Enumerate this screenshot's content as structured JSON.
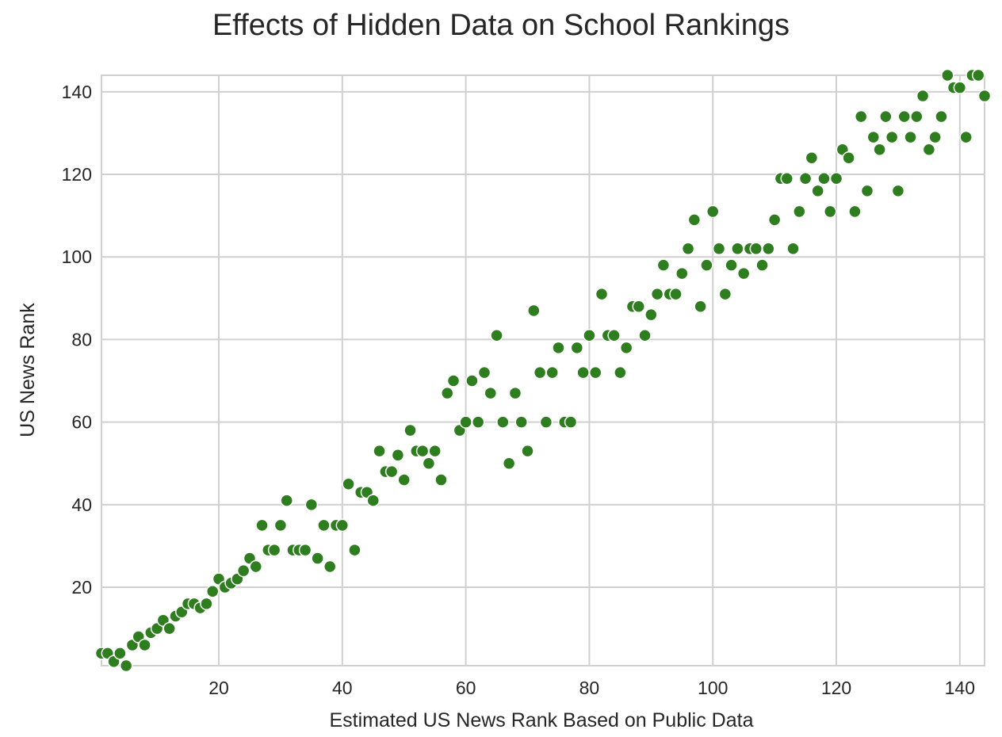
{
  "chart_data": {
    "type": "scatter",
    "title": "Effects of Hidden Data on School Rankings",
    "xlabel": "Estimated US News Rank Based on Public Data",
    "ylabel": "US News Rank",
    "xlim": [
      1,
      144
    ],
    "ylim": [
      1,
      144
    ],
    "xticks": [
      20,
      40,
      60,
      80,
      100,
      120,
      140
    ],
    "yticks": [
      20,
      40,
      60,
      80,
      100,
      120,
      140
    ],
    "grid": true,
    "legend": "none",
    "point_color": "#2e7d1e",
    "points": [
      [
        1,
        4
      ],
      [
        2,
        4
      ],
      [
        3,
        2
      ],
      [
        4,
        4
      ],
      [
        5,
        1
      ],
      [
        6,
        6
      ],
      [
        7,
        8
      ],
      [
        8,
        6
      ],
      [
        9,
        9
      ],
      [
        10,
        10
      ],
      [
        11,
        12
      ],
      [
        12,
        10
      ],
      [
        13,
        13
      ],
      [
        14,
        14
      ],
      [
        15,
        16
      ],
      [
        16,
        16
      ],
      [
        17,
        15
      ],
      [
        18,
        16
      ],
      [
        19,
        19
      ],
      [
        20,
        22
      ],
      [
        21,
        20
      ],
      [
        22,
        21
      ],
      [
        23,
        22
      ],
      [
        24,
        24
      ],
      [
        25,
        27
      ],
      [
        26,
        25
      ],
      [
        27,
        35
      ],
      [
        28,
        29
      ],
      [
        29,
        29
      ],
      [
        30,
        35
      ],
      [
        31,
        41
      ],
      [
        32,
        29
      ],
      [
        33,
        29
      ],
      [
        34,
        29
      ],
      [
        35,
        40
      ],
      [
        36,
        27
      ],
      [
        37,
        35
      ],
      [
        38,
        25
      ],
      [
        39,
        35
      ],
      [
        40,
        35
      ],
      [
        41,
        45
      ],
      [
        42,
        29
      ],
      [
        43,
        43
      ],
      [
        44,
        43
      ],
      [
        45,
        41
      ],
      [
        46,
        53
      ],
      [
        47,
        48
      ],
      [
        48,
        48
      ],
      [
        49,
        52
      ],
      [
        50,
        46
      ],
      [
        51,
        58
      ],
      [
        52,
        53
      ],
      [
        53,
        53
      ],
      [
        54,
        50
      ],
      [
        55,
        53
      ],
      [
        56,
        46
      ],
      [
        57,
        67
      ],
      [
        58,
        70
      ],
      [
        59,
        58
      ],
      [
        60,
        60
      ],
      [
        61,
        70
      ],
      [
        62,
        60
      ],
      [
        63,
        72
      ],
      [
        64,
        67
      ],
      [
        65,
        81
      ],
      [
        66,
        60
      ],
      [
        67,
        50
      ],
      [
        68,
        67
      ],
      [
        69,
        60
      ],
      [
        70,
        53
      ],
      [
        71,
        87
      ],
      [
        72,
        72
      ],
      [
        73,
        60
      ],
      [
        74,
        72
      ],
      [
        75,
        78
      ],
      [
        76,
        60
      ],
      [
        77,
        60
      ],
      [
        78,
        78
      ],
      [
        79,
        72
      ],
      [
        80,
        81
      ],
      [
        81,
        72
      ],
      [
        82,
        91
      ],
      [
        83,
        81
      ],
      [
        84,
        81
      ],
      [
        85,
        72
      ],
      [
        86,
        78
      ],
      [
        87,
        88
      ],
      [
        88,
        88
      ],
      [
        89,
        81
      ],
      [
        90,
        86
      ],
      [
        91,
        91
      ],
      [
        92,
        98
      ],
      [
        93,
        91
      ],
      [
        94,
        91
      ],
      [
        95,
        96
      ],
      [
        96,
        102
      ],
      [
        97,
        109
      ],
      [
        98,
        88
      ],
      [
        99,
        98
      ],
      [
        100,
        111
      ],
      [
        101,
        102
      ],
      [
        102,
        91
      ],
      [
        103,
        98
      ],
      [
        104,
        102
      ],
      [
        105,
        96
      ],
      [
        106,
        102
      ],
      [
        107,
        102
      ],
      [
        108,
        98
      ],
      [
        109,
        102
      ],
      [
        110,
        109
      ],
      [
        111,
        119
      ],
      [
        112,
        119
      ],
      [
        113,
        102
      ],
      [
        114,
        111
      ],
      [
        115,
        119
      ],
      [
        116,
        124
      ],
      [
        117,
        116
      ],
      [
        118,
        119
      ],
      [
        119,
        111
      ],
      [
        120,
        119
      ],
      [
        121,
        126
      ],
      [
        122,
        124
      ],
      [
        123,
        111
      ],
      [
        124,
        134
      ],
      [
        125,
        116
      ],
      [
        126,
        129
      ],
      [
        127,
        126
      ],
      [
        128,
        134
      ],
      [
        129,
        129
      ],
      [
        130,
        116
      ],
      [
        131,
        134
      ],
      [
        132,
        129
      ],
      [
        133,
        134
      ],
      [
        134,
        139
      ],
      [
        135,
        126
      ],
      [
        136,
        129
      ],
      [
        137,
        134
      ],
      [
        138,
        144
      ],
      [
        139,
        141
      ],
      [
        140,
        141
      ],
      [
        141,
        129
      ],
      [
        142,
        144
      ],
      [
        143,
        144
      ],
      [
        144,
        139
      ]
    ]
  }
}
